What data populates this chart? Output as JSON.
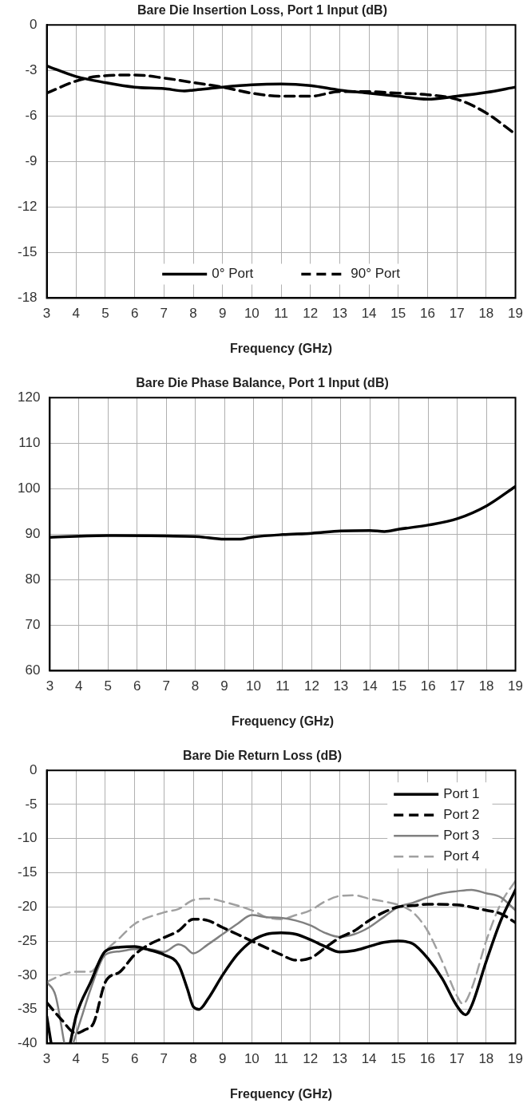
{
  "chart_data": [
    {
      "type": "line",
      "title": "Bare Die Insertion Loss, Port 1 Input (dB)",
      "xlabel": "Frequency (GHz)",
      "xlim": [
        3,
        19
      ],
      "xticks": [
        3,
        4,
        5,
        6,
        7,
        8,
        9,
        10,
        11,
        12,
        13,
        14,
        15,
        16,
        17,
        18,
        19
      ],
      "ylim": [
        -18,
        0
      ],
      "yticks": [
        -18,
        -15,
        -12,
        -9,
        -6,
        -3,
        0
      ],
      "grid": true,
      "legend": "bottom",
      "series": [
        {
          "name": "0° Port",
          "color": "#000000",
          "line_style": "solid",
          "x": [
            3,
            4,
            5,
            6,
            7,
            7.7,
            8,
            9,
            10,
            11,
            12,
            13,
            14,
            15,
            16,
            17,
            18,
            19
          ],
          "values": [
            -2.7,
            -3.4,
            -3.8,
            -4.1,
            -4.2,
            -4.35,
            -4.3,
            -4.1,
            -3.95,
            -3.9,
            -4.0,
            -4.3,
            -4.5,
            -4.7,
            -4.9,
            -4.7,
            -4.45,
            -4.1
          ]
        },
        {
          "name": "90° Port",
          "color": "#000000",
          "line_style": "dashed",
          "x": [
            3,
            4,
            4.7,
            6,
            7,
            8,
            9,
            10,
            11,
            12,
            13,
            14,
            15,
            16,
            17,
            18,
            19
          ],
          "values": [
            -4.5,
            -3.7,
            -3.4,
            -3.3,
            -3.5,
            -3.8,
            -4.1,
            -4.5,
            -4.7,
            -4.7,
            -4.4,
            -4.4,
            -4.5,
            -4.6,
            -4.9,
            -5.8,
            -7.2
          ]
        }
      ]
    },
    {
      "type": "line",
      "title": "Bare Die Phase Balance, Port 1 Input (dB)",
      "xlabel": "Frequency (GHz)",
      "xlim": [
        3,
        19
      ],
      "xticks": [
        3,
        4,
        5,
        6,
        7,
        8,
        9,
        10,
        11,
        12,
        13,
        14,
        15,
        16,
        17,
        18,
        19
      ],
      "ylim": [
        60,
        120
      ],
      "yticks": [
        60,
        70,
        80,
        90,
        100,
        110,
        120
      ],
      "grid": true,
      "series": [
        {
          "color": "#000000",
          "line_style": "solid",
          "x": [
            3,
            5,
            7,
            8,
            9,
            9.5,
            10,
            11,
            12,
            13,
            14,
            14.5,
            15,
            16,
            17,
            18,
            19
          ],
          "values": [
            89.3,
            89.7,
            89.6,
            89.5,
            88.9,
            88.9,
            89.4,
            89.9,
            90.2,
            90.7,
            90.8,
            90.6,
            91.1,
            92.0,
            93.4,
            96.2,
            100.5
          ]
        }
      ]
    },
    {
      "type": "line",
      "title": "Bare Die Return Loss (dB)",
      "xlabel": "Frequency (GHz)",
      "xlim": [
        3,
        19
      ],
      "xticks": [
        3,
        4,
        5,
        6,
        7,
        8,
        9,
        10,
        11,
        12,
        13,
        14,
        15,
        16,
        17,
        18,
        19
      ],
      "ylim": [
        -40,
        0
      ],
      "yticks": [
        -40,
        -35,
        -30,
        -25,
        -20,
        -15,
        -10,
        -5,
        0
      ],
      "grid": true,
      "legend": "top right",
      "series": [
        {
          "name": "Port 1",
          "color": "#000000",
          "line_style": "solid",
          "x": [
            3,
            3.15,
            3.5,
            3.8,
            4,
            4.5,
            5,
            5.5,
            6,
            6.5,
            7,
            7.5,
            7.8,
            8,
            8.2,
            8.5,
            9,
            9.5,
            10,
            10.5,
            11,
            11.5,
            12,
            12.5,
            13,
            13.5,
            14,
            14.5,
            15,
            15.5,
            16,
            16.5,
            17,
            17.3,
            17.5,
            18,
            18.5,
            19
          ],
          "values": [
            -36,
            -40,
            null,
            -40,
            -36,
            -31,
            -26.5,
            -25.9,
            -25.8,
            -26.3,
            -27,
            -28.5,
            -32,
            -34.6,
            -35,
            -33.5,
            -30,
            -27,
            -25,
            -24,
            -23.8,
            -24,
            -24.8,
            -25.8,
            -26.6,
            -26.4,
            -25.8,
            -25.2,
            -25,
            -25.4,
            -27.5,
            -30.5,
            -34.5,
            -35.8,
            -34.5,
            -28,
            -22,
            -17.5
          ]
        },
        {
          "name": "Port 2",
          "color": "#000000",
          "line_style": "dashed",
          "x": [
            3,
            3.5,
            4,
            4.3,
            4.6,
            5,
            5.5,
            6,
            6.5,
            7,
            7.5,
            8,
            8.5,
            9,
            9.5,
            10,
            10.5,
            11,
            11.5,
            12,
            12.5,
            13,
            13.5,
            14,
            14.5,
            15,
            15.5,
            16,
            17,
            18,
            18.5,
            19
          ],
          "values": [
            -34,
            -36.5,
            -38.5,
            -38,
            -37,
            -31,
            -29.5,
            -27,
            -25.5,
            -24.5,
            -23.5,
            -21.8,
            -22,
            -23,
            -24,
            -25,
            -26,
            -27,
            -27.8,
            -27.5,
            -26,
            -24.5,
            -23.5,
            -22,
            -20.8,
            -20,
            -19.8,
            -19.6,
            -19.7,
            -20.5,
            -21,
            -22.3
          ]
        },
        {
          "name": "Port 3",
          "color": "#808080",
          "line_style": "solid",
          "x": [
            3,
            3.3,
            3.6,
            3.75,
            3.9,
            4.2,
            4.5,
            5,
            5.5,
            6,
            6.5,
            7,
            7.5,
            7.7,
            8,
            8.5,
            9,
            9.5,
            10,
            10.5,
            11,
            11.5,
            12,
            12.5,
            13,
            13.5,
            14,
            14.5,
            15,
            15.5,
            16,
            16.5,
            17,
            17.5,
            18,
            18.5,
            19
          ],
          "values": [
            -31,
            -33,
            -40,
            null,
            -40,
            -36,
            -32,
            -27,
            -26.5,
            -26.2,
            -26.2,
            -26.6,
            -25.5,
            -25.8,
            -26.8,
            -25.5,
            -24,
            -22.5,
            -21.2,
            -21.5,
            -21.6,
            -22,
            -22.7,
            -23.8,
            -24.4,
            -24,
            -23,
            -21.5,
            -20,
            -19.4,
            -18.6,
            -18,
            -17.7,
            -17.5,
            -18,
            -18.6,
            -20.5
          ]
        },
        {
          "name": "Port 4",
          "color": "#a0a0a0",
          "line_style": "dashed",
          "x": [
            3,
            3.5,
            4,
            4.5,
            5,
            5.5,
            6,
            7,
            7.5,
            8,
            8.5,
            9,
            10,
            10.5,
            11,
            11.5,
            12,
            12.5,
            13,
            13.5,
            14,
            14.5,
            15,
            15.5,
            16,
            16.5,
            17,
            17.2,
            17.5,
            18,
            18.5,
            19
          ],
          "values": [
            -31,
            -30,
            -29.5,
            -29.5,
            -26.5,
            -24.5,
            -22.5,
            -20.8,
            -20.3,
            -19,
            -18.8,
            -19.2,
            -20.5,
            -21.5,
            -21.8,
            -21.2,
            -20.5,
            -19.2,
            -18.4,
            -18.3,
            -18.8,
            -19.2,
            -19.7,
            -20.8,
            -23.5,
            -28,
            -33,
            -34.2,
            -32,
            -25,
            -19.5,
            -16.2
          ]
        }
      ]
    }
  ]
}
